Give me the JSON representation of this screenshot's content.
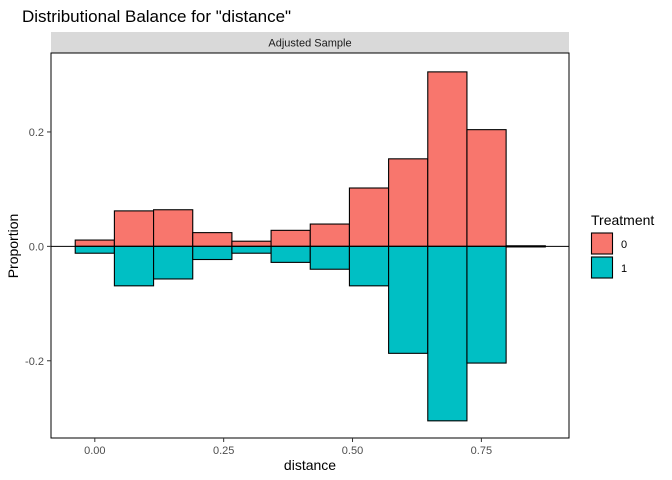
{
  "chart_data": {
    "type": "bar",
    "title": "Distributional Balance for \"distance\"",
    "facet_label": "Adjusted Sample",
    "xlabel": "distance",
    "ylabel": "Proportion",
    "xlim": [
      -0.085,
      0.92
    ],
    "ylim": [
      -0.335,
      0.338
    ],
    "x_ticks": [
      0.0,
      0.25,
      0.5,
      0.75
    ],
    "x_tick_labels": [
      "0.00",
      "0.25",
      "0.50",
      "0.75"
    ],
    "y_ticks": [
      -0.2,
      0.0,
      0.2
    ],
    "y_tick_labels": [
      "-0.2",
      "0.0",
      "0.2"
    ],
    "bin_width": 0.076,
    "bin_centers": [
      0.0,
      0.076,
      0.152,
      0.228,
      0.304,
      0.38,
      0.456,
      0.532,
      0.608,
      0.684,
      0.76,
      0.836
    ],
    "series": [
      {
        "name": "0",
        "color": "#F8766D",
        "direction": "up",
        "values": [
          0.011,
          0.062,
          0.064,
          0.024,
          0.009,
          0.028,
          0.039,
          0.102,
          0.153,
          0.305,
          0.204,
          0.001
        ]
      },
      {
        "name": "1",
        "color": "#00BFC4",
        "direction": "down",
        "values": [
          0.012,
          0.069,
          0.057,
          0.023,
          0.012,
          0.028,
          0.04,
          0.069,
          0.187,
          0.305,
          0.204,
          0.001
        ]
      }
    ],
    "legend": {
      "title": "Treatment",
      "position": "right"
    },
    "grid": false
  }
}
